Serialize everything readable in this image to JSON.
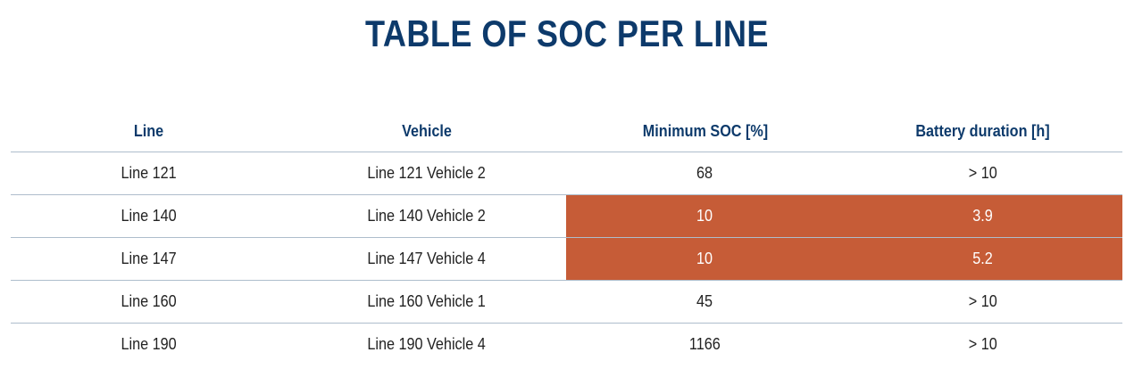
{
  "title": "TABLE OF SOC PER LINE",
  "colors": {
    "title": "#0d3a6b",
    "header_text": "#0d3a6b",
    "highlight": "#c65c37",
    "divider": "#aebdcc"
  },
  "table": {
    "headers": [
      "Line",
      "Vehicle",
      "Minimum SOC [%]",
      "Battery duration [h]"
    ],
    "rows": [
      {
        "line": "Line 121",
        "vehicle": "Line 121 Vehicle 2",
        "min_soc": "68",
        "battery": "> 10",
        "highlight": false
      },
      {
        "line": "Line 140",
        "vehicle": "Line 140 Vehicle 2",
        "min_soc": "10",
        "battery": "3.9",
        "highlight": true
      },
      {
        "line": "Line 147",
        "vehicle": "Line 147 Vehicle 4",
        "min_soc": "10",
        "battery": "5.2",
        "highlight": true
      },
      {
        "line": "Line 160",
        "vehicle": "Line 160 Vehicle 1",
        "min_soc": "45",
        "battery": "> 10",
        "highlight": false
      },
      {
        "line": "Line 190",
        "vehicle": "Line 190 Vehicle 4",
        "min_soc": "1166",
        "battery": "> 10",
        "highlight": false
      }
    ]
  }
}
